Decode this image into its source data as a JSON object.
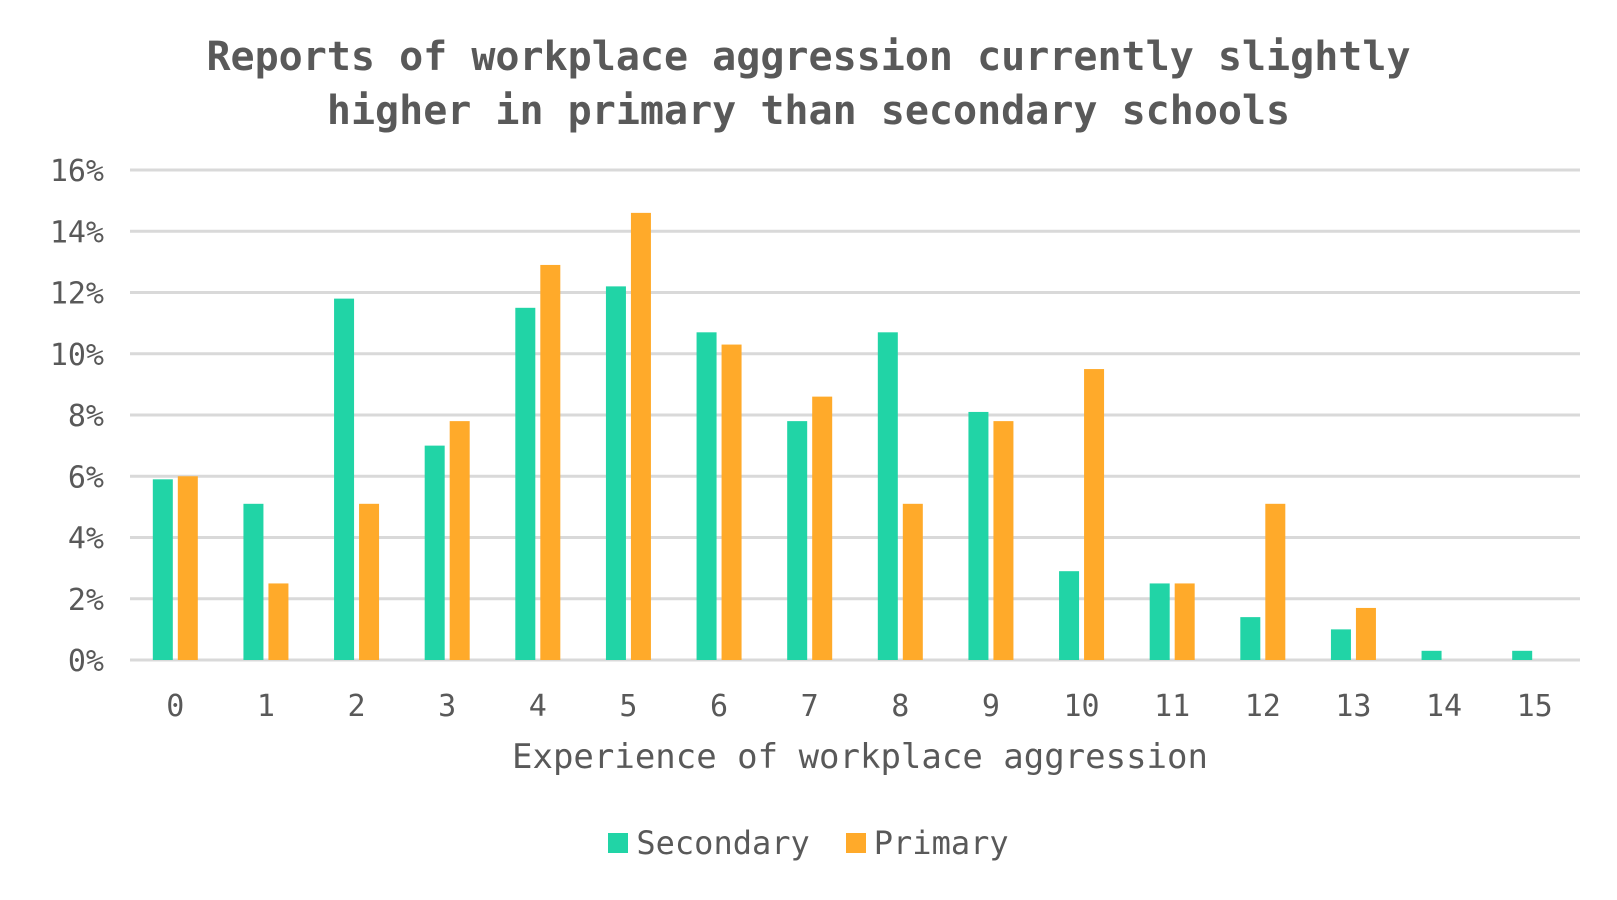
{
  "chart_data": {
    "type": "bar",
    "title": [
      "Reports of workplace aggression currently slightly",
      "higher in primary than secondary schools"
    ],
    "xlabel": "Experience of workplace aggression",
    "ylabel": "",
    "categories": [
      "0",
      "1",
      "2",
      "3",
      "4",
      "5",
      "6",
      "7",
      "8",
      "9",
      "10",
      "11",
      "12",
      "13",
      "14",
      "15"
    ],
    "ylim": [
      0,
      16
    ],
    "yticks": [
      "0%",
      "2%",
      "4%",
      "6%",
      "8%",
      "10%",
      "12%",
      "14%",
      "16%"
    ],
    "ytick_values": [
      0,
      2,
      4,
      6,
      8,
      10,
      12,
      14,
      16
    ],
    "grid": true,
    "legend_position": "bottom",
    "series": [
      {
        "name": "Secondary",
        "color": "#21D4A6",
        "values": [
          5.9,
          5.1,
          11.8,
          7.0,
          11.5,
          12.2,
          10.7,
          7.8,
          10.7,
          8.1,
          2.9,
          2.5,
          1.4,
          1.0,
          0.3,
          0.3
        ]
      },
      {
        "name": "Primary",
        "color": "#FFAA2A",
        "values": [
          6.0,
          2.5,
          5.1,
          7.8,
          12.9,
          14.6,
          10.3,
          8.6,
          5.1,
          7.8,
          9.5,
          2.5,
          5.1,
          1.7,
          0,
          0
        ]
      }
    ]
  }
}
